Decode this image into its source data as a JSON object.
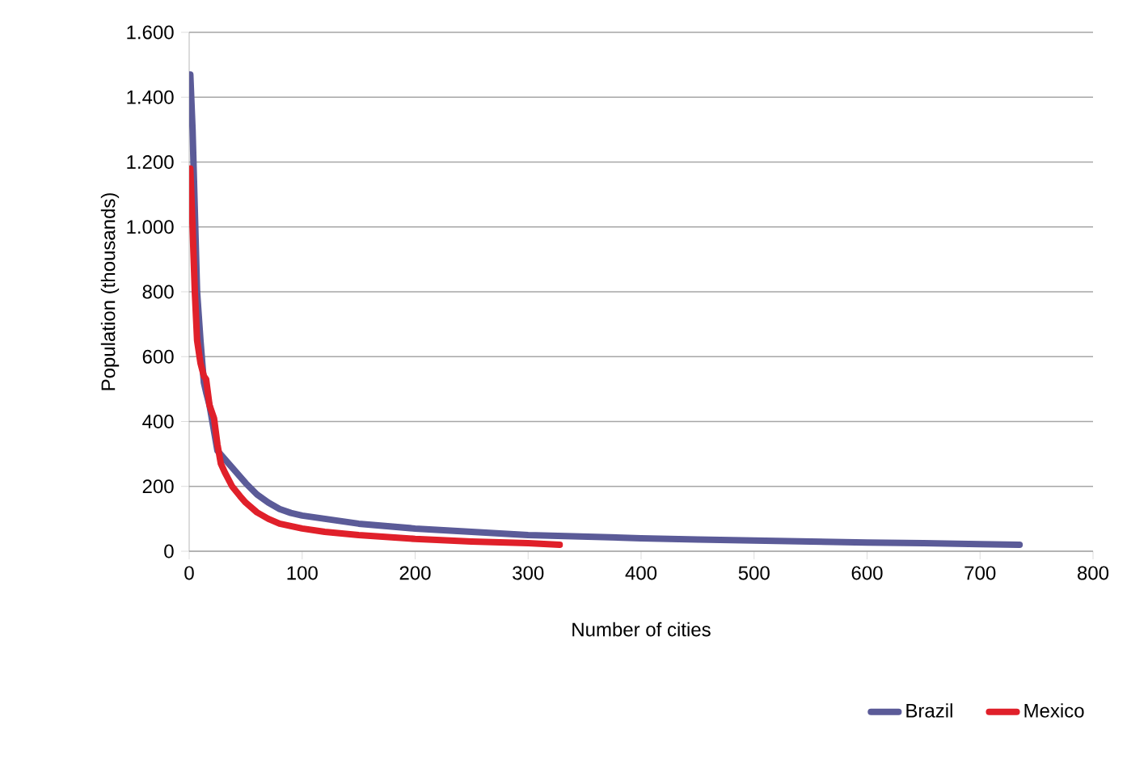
{
  "chart_data": {
    "type": "line",
    "xlabel": "Number of cities",
    "ylabel": "Population (thousands)",
    "xlim": [
      0,
      800
    ],
    "xticks": [
      0,
      100,
      200,
      300,
      400,
      500,
      600,
      700,
      800
    ],
    "ylim": [
      0,
      1600
    ],
    "yticks": [
      0,
      200,
      400,
      600,
      800,
      {
        "value": 1000,
        "label": "1.000"
      },
      {
        "value": 1200,
        "label": "1.200"
      },
      {
        "value": 1400,
        "label": "1.400"
      },
      {
        "value": 1600,
        "label": "1.600"
      }
    ],
    "grid": "y",
    "legend": "bottom right",
    "marker": "none",
    "line_style": "solid",
    "series": [
      {
        "name": "Brazil",
        "color": "#5b5b98",
        "x": [
          1,
          3,
          5,
          7,
          10,
          13,
          15,
          18,
          22,
          25,
          30,
          35,
          40,
          45,
          50,
          60,
          70,
          80,
          90,
          100,
          120,
          150,
          200,
          250,
          300,
          350,
          400,
          450,
          500,
          550,
          600,
          650,
          700,
          735
        ],
        "values": [
          1470,
          1300,
          1050,
          800,
          650,
          520,
          490,
          450,
          370,
          310,
          290,
          270,
          250,
          230,
          210,
          175,
          150,
          130,
          118,
          110,
          100,
          85,
          70,
          60,
          50,
          45,
          40,
          36,
          33,
          30,
          27,
          25,
          22,
          20
        ]
      },
      {
        "name": "Mexico",
        "color": "#e0202a",
        "x": [
          1,
          3,
          5,
          7,
          10,
          13,
          15,
          18,
          22,
          25,
          28,
          32,
          38,
          45,
          50,
          60,
          70,
          80,
          100,
          120,
          150,
          200,
          250,
          300,
          328
        ],
        "values": [
          1180,
          1000,
          800,
          650,
          580,
          540,
          530,
          450,
          410,
          330,
          270,
          240,
          200,
          170,
          150,
          120,
          100,
          85,
          70,
          60,
          50,
          38,
          30,
          25,
          20
        ]
      }
    ]
  }
}
